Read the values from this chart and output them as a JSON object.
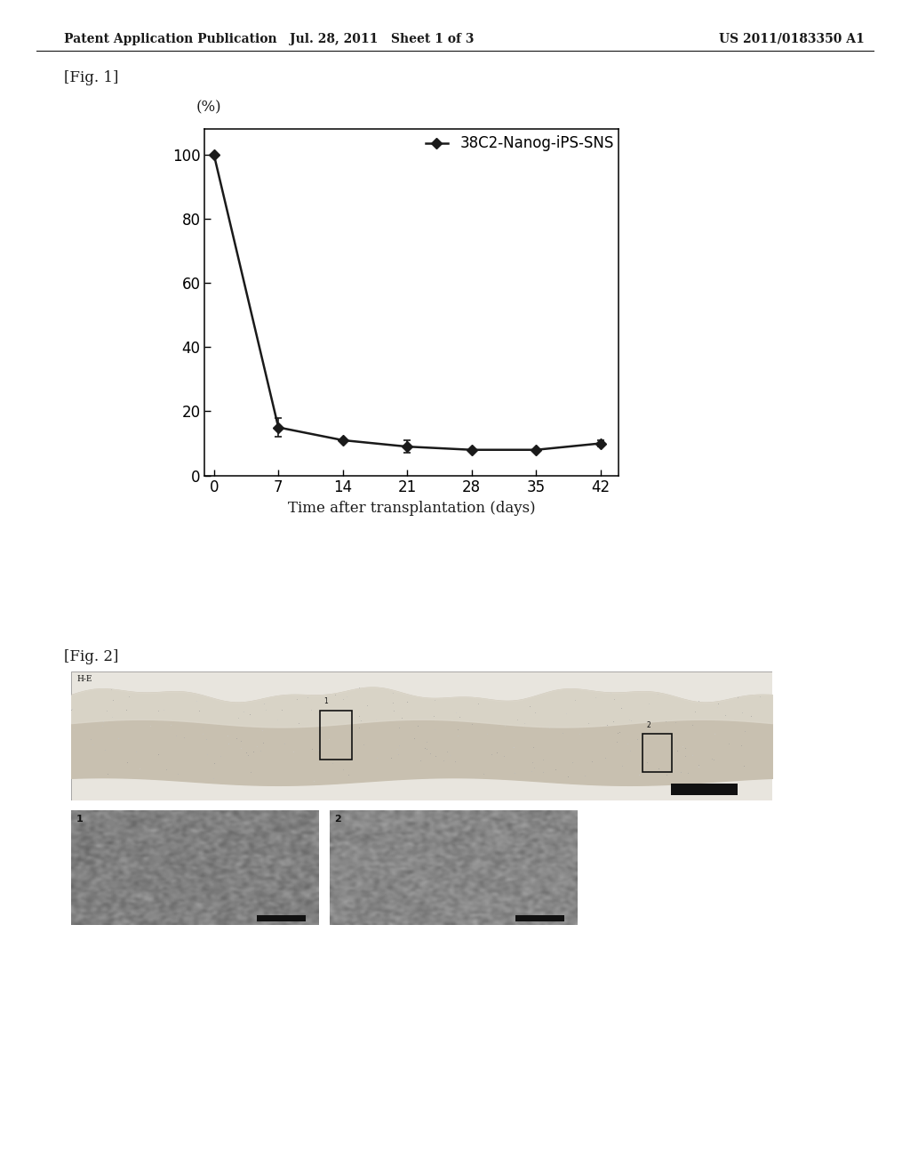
{
  "header_left": "Patent Application Publication",
  "header_mid": "Jul. 28, 2011   Sheet 1 of 3",
  "header_right": "US 2011/0183350 A1",
  "fig1_label": "[Fig. 1]",
  "fig2_label": "[Fig. 2]",
  "ylabel": "(%)",
  "xlabel": "Time after transplantation (days)",
  "legend_label": "38C2-Nanog-iPS-SNS",
  "x_data": [
    0,
    7,
    14,
    21,
    28,
    35,
    42
  ],
  "y_data": [
    100,
    15,
    11,
    9,
    8,
    8,
    10
  ],
  "y_err": [
    0,
    3,
    0,
    2,
    0,
    0,
    1
  ],
  "x_ticks": [
    0,
    7,
    14,
    21,
    28,
    35,
    42
  ],
  "y_ticks": [
    0,
    20,
    40,
    60,
    80,
    100
  ],
  "ylim": [
    0,
    108
  ],
  "xlim": [
    -1,
    44
  ],
  "line_color": "#1a1a1a",
  "marker": "D",
  "marker_size": 6,
  "line_width": 1.8,
  "bg_color": "#ffffff",
  "text_color": "#1a1a1a",
  "header_fontsize": 10,
  "axis_fontsize": 12,
  "tick_fontsize": 12,
  "legend_fontsize": 12,
  "fig1_label_fontsize": 12,
  "fig2_label_fontsize": 12
}
